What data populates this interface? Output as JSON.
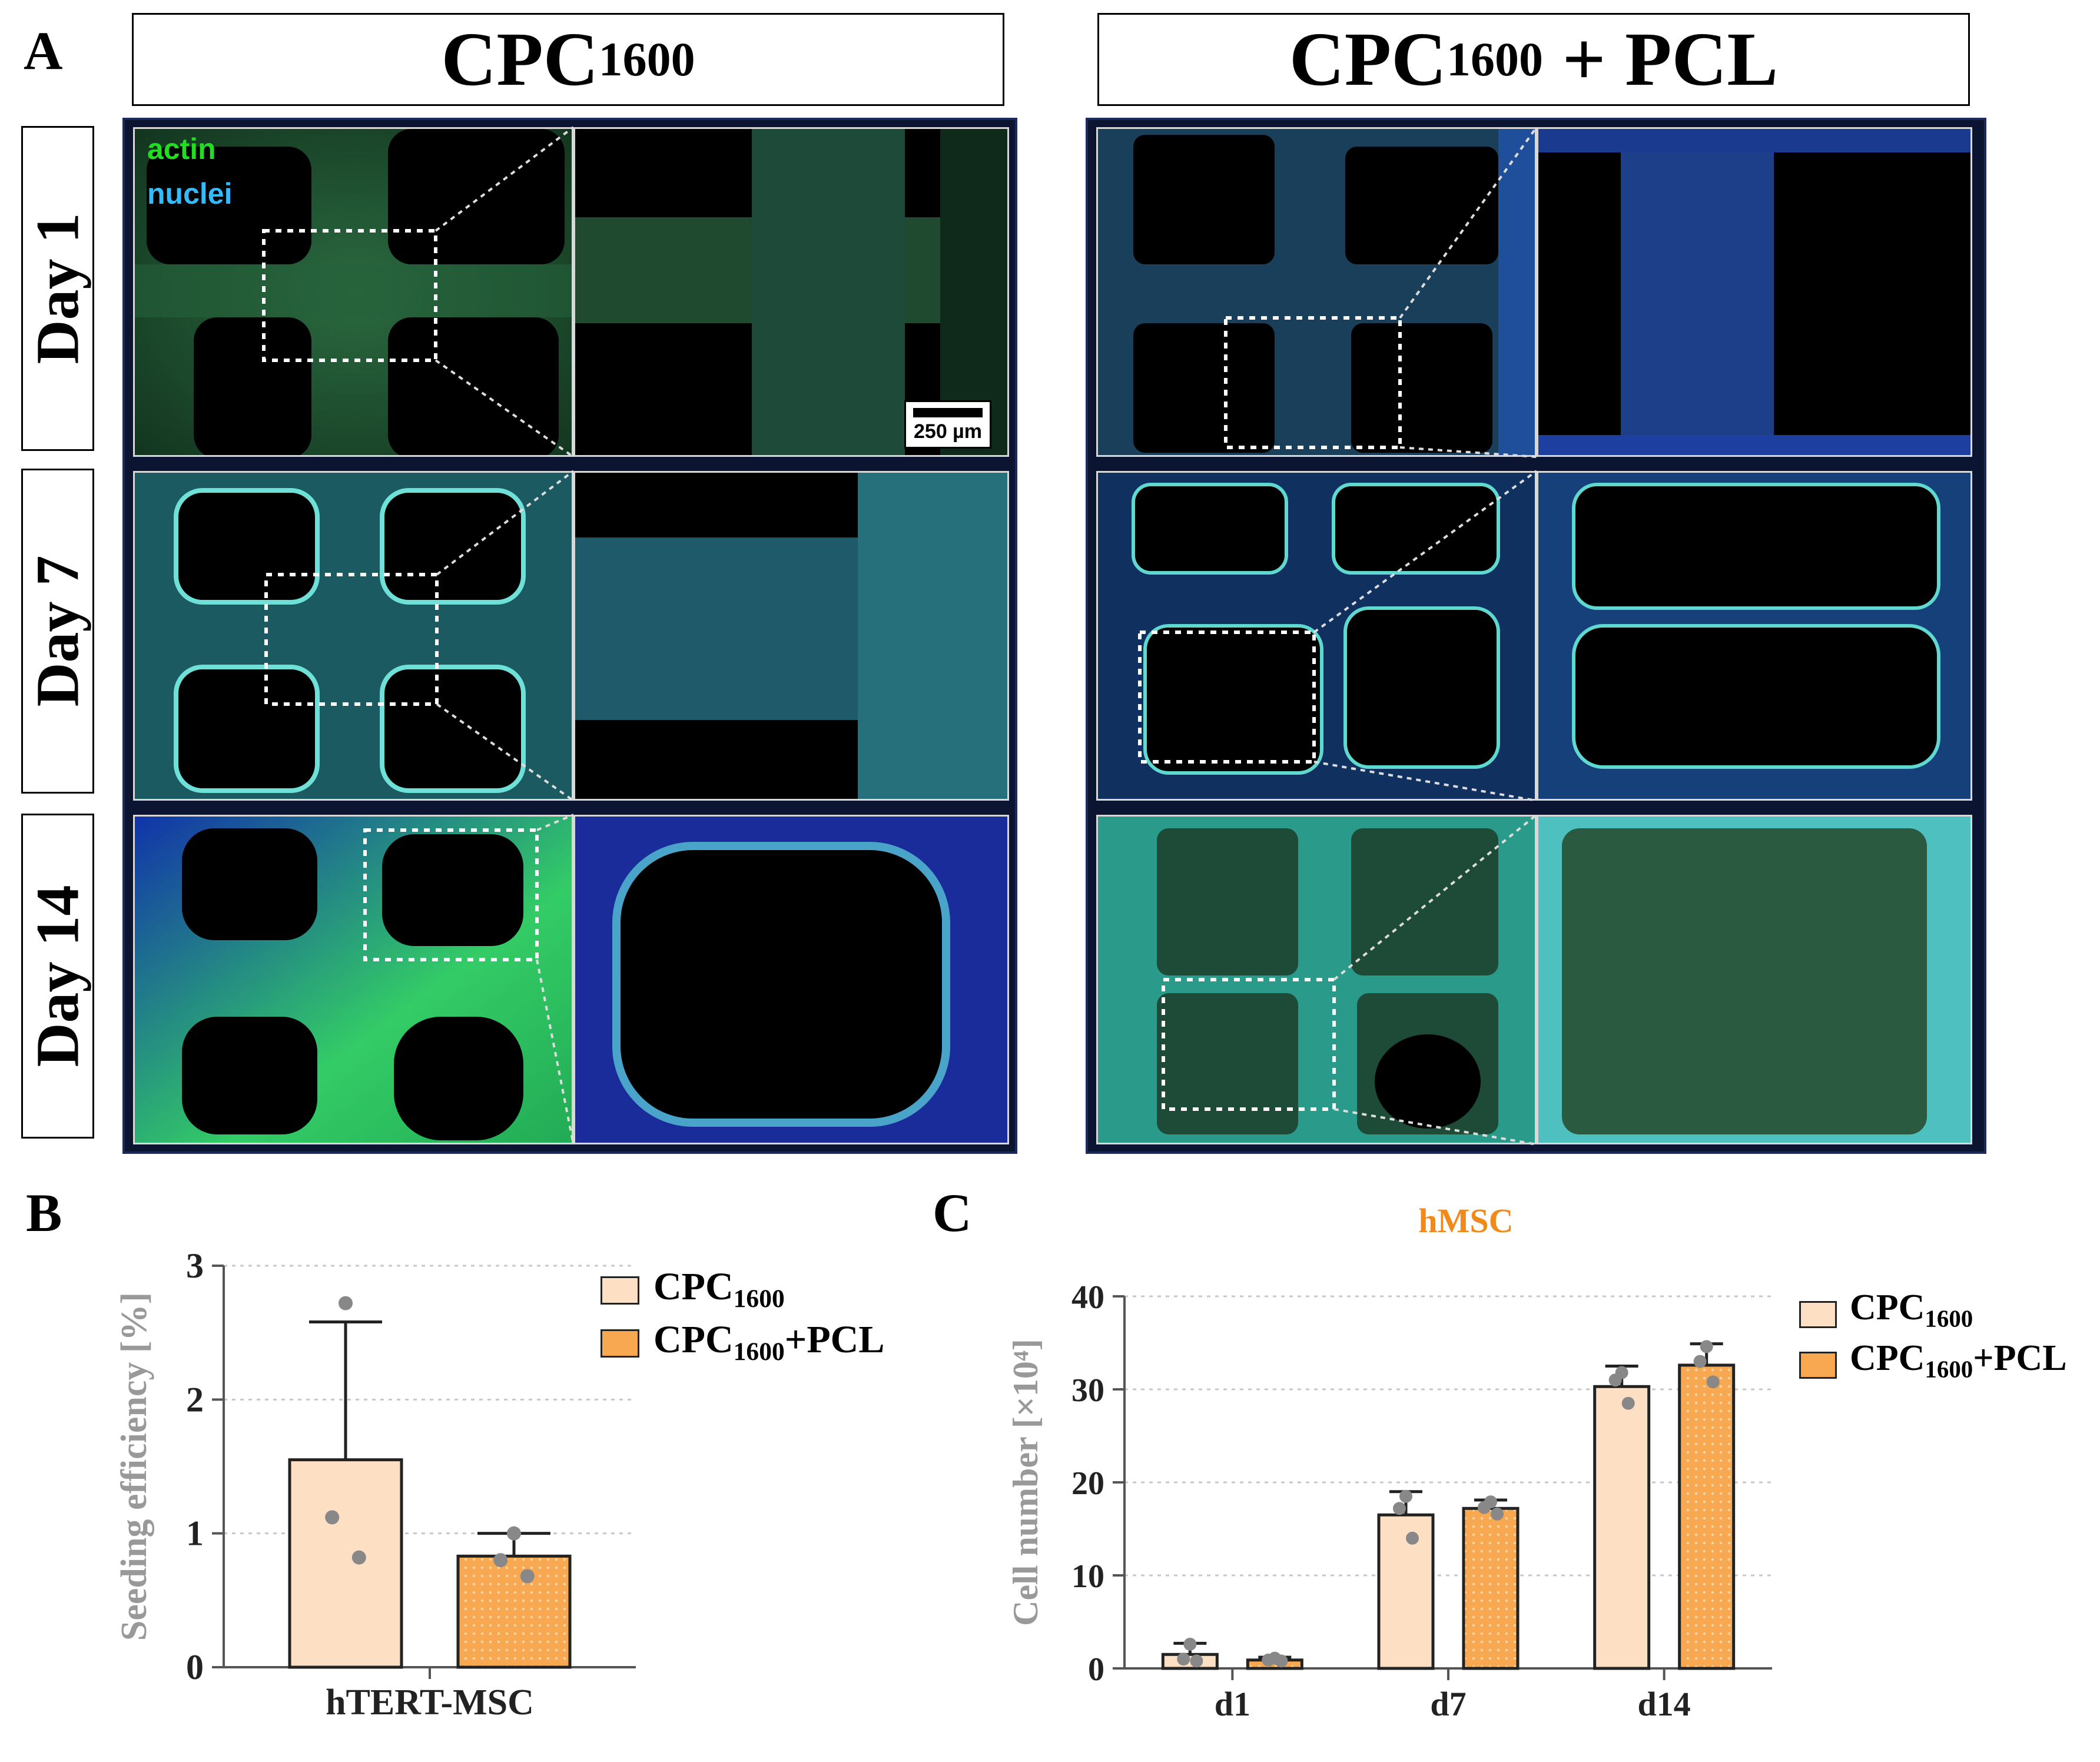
{
  "panel_a": {
    "letter": "A",
    "columns": [
      {
        "base": "CPC",
        "sub": "1600",
        "suffix": ""
      },
      {
        "base": "CPC",
        "sub": "1600",
        "suffix": " + PCL"
      }
    ],
    "rows": [
      "Day 1",
      "Day 7",
      "Day 14"
    ],
    "stain_labels": {
      "actin": "actin",
      "nuclei": "nuclei",
      "actin_color": "#22dd22",
      "nuclei_color": "#33bbff"
    },
    "scale_bar": "250 µm"
  },
  "panel_b": {
    "letter": "B",
    "chart_data": {
      "type": "bar",
      "title": "",
      "categories": [
        "hTERT-MSC"
      ],
      "ylabel": "Seeding efficiency [%]",
      "xlabel": "",
      "ylim": [
        0,
        3
      ],
      "yticks": [
        "0",
        "1",
        "2",
        "3"
      ],
      "grid": true,
      "legend_position": "top-right",
      "series": [
        {
          "name": "CPC1600",
          "legend_base": "CPC",
          "legend_sub": "1600",
          "legend_suffix": "",
          "color": "#fde0c4",
          "values": [
            1.55
          ],
          "sd": [
            1.03
          ],
          "points": [
            [
              2.72,
              1.12,
              0.82
            ]
          ]
        },
        {
          "name": "CPC1600+PCL",
          "legend_base": "CPC",
          "legend_sub": "1600",
          "legend_suffix": "+PCL",
          "color": "#f7a851",
          "values": [
            0.83
          ],
          "sd": [
            0.17
          ],
          "points": [
            [
              1.0,
              0.8,
              0.68
            ]
          ]
        }
      ]
    }
  },
  "panel_c": {
    "letter": "C",
    "chart_data": {
      "type": "bar",
      "title": "hMSC",
      "categories": [
        "d1",
        "d7",
        "d14"
      ],
      "ylabel": "Cell number  [×10⁴]",
      "xlabel": "",
      "ylim": [
        0,
        40
      ],
      "yticks": [
        "0",
        "10",
        "20",
        "30",
        "40"
      ],
      "grid": true,
      "legend_position": "top-right",
      "series": [
        {
          "name": "CPC1600",
          "legend_base": "CPC",
          "legend_sub": "1600",
          "legend_suffix": "",
          "color": "#fde0c4",
          "values": [
            1.5,
            16.5,
            30.3
          ],
          "sd": [
            1.2,
            2.5,
            2.2
          ],
          "points": [
            [
              2.6,
              1.0,
              0.8
            ],
            [
              18.5,
              17.2,
              14.0
            ],
            [
              31.8,
              31.0,
              28.5
            ]
          ]
        },
        {
          "name": "CPC1600+PCL",
          "legend_base": "CPC",
          "legend_sub": "1600",
          "legend_suffix": "+PCL",
          "color": "#f7a851",
          "values": [
            0.9,
            17.2,
            32.6
          ],
          "sd": [
            0.3,
            0.9,
            2.3
          ],
          "points": [
            [
              1.1,
              0.9,
              0.8
            ],
            [
              17.9,
              17.3,
              16.6
            ],
            [
              34.6,
              33.0,
              30.8
            ]
          ]
        }
      ]
    }
  }
}
